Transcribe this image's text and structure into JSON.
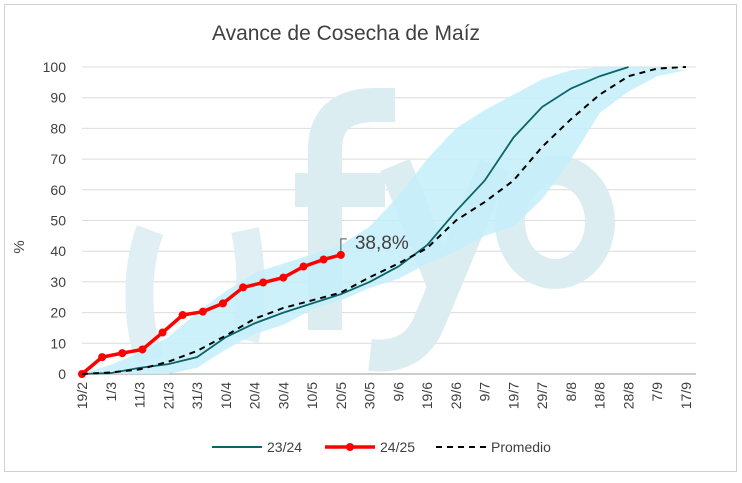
{
  "chart_data": {
    "type": "line",
    "title": "Avance de Cosecha de Maíz",
    "ylabel": "%",
    "xlabel": "",
    "ylim": [
      0,
      100
    ],
    "yticks": [
      0,
      10,
      20,
      30,
      40,
      50,
      60,
      70,
      80,
      90,
      100
    ],
    "grid": true,
    "legend_position": "bottom",
    "x_ticks": [
      "19/2",
      "1/3",
      "11/3",
      "21/3",
      "31/3",
      "10/4",
      "20/4",
      "30/4",
      "10/5",
      "20/5",
      "30/5",
      "9/6",
      "19/6",
      "29/6",
      "9/7",
      "19/7",
      "29/7",
      "8/8",
      "18/8",
      "28/8",
      "7/9",
      "17/9"
    ],
    "band": {
      "upper": [
        0,
        3,
        7,
        12,
        20,
        27,
        33,
        36,
        39,
        42,
        48,
        58,
        70,
        80,
        86,
        91,
        96,
        99,
        100,
        100,
        100,
        99
      ],
      "lower": [
        0,
        0,
        0,
        0,
        2,
        8,
        13,
        16,
        21,
        24,
        28,
        31,
        36,
        40,
        45,
        48,
        57,
        70,
        85,
        92,
        97,
        99
      ],
      "color": "#c4eefa"
    },
    "series": [
      {
        "name": "23/24",
        "color": "#0b6468",
        "style": "solid",
        "x_index": [
          0,
          1,
          2,
          3,
          4,
          5,
          6,
          7,
          8,
          9,
          10,
          11,
          12,
          13,
          14,
          15,
          16,
          17,
          18,
          19
        ],
        "values": [
          0,
          0.3,
          2,
          3.2,
          5.5,
          12,
          16.5,
          20,
          23,
          26,
          30,
          35,
          42,
          53,
          63,
          77,
          87,
          93,
          97,
          100
        ]
      },
      {
        "name": "24/25",
        "color": "#ff0000",
        "style": "markers",
        "dates": [
          "19/2",
          "26/2",
          "5/3",
          "12/3",
          "19/3",
          "26/3",
          "2/4",
          "9/4",
          "16/4",
          "23/4",
          "30/4",
          "7/5",
          "14/5",
          "20/5"
        ],
        "values": [
          0,
          5.5,
          6.8,
          8,
          13.5,
          19.2,
          20.3,
          23,
          28.2,
          29.8,
          31.4,
          35,
          37.3,
          38.8
        ]
      },
      {
        "name": "Promedio",
        "color": "#000000",
        "style": "dashed",
        "x_index": [
          0,
          1,
          2,
          3,
          4,
          5,
          6,
          7,
          8,
          9,
          10,
          11,
          12,
          13,
          14,
          15,
          16,
          17,
          18,
          19,
          20,
          21
        ],
        "values": [
          0,
          0.5,
          1.5,
          4,
          7.5,
          12.5,
          18,
          21.5,
          24,
          26.5,
          31.5,
          36,
          41,
          50,
          56,
          63,
          74,
          83,
          91,
          97,
          99.5,
          100
        ]
      }
    ],
    "annotation": "38,8%"
  },
  "watermark": "fyo"
}
